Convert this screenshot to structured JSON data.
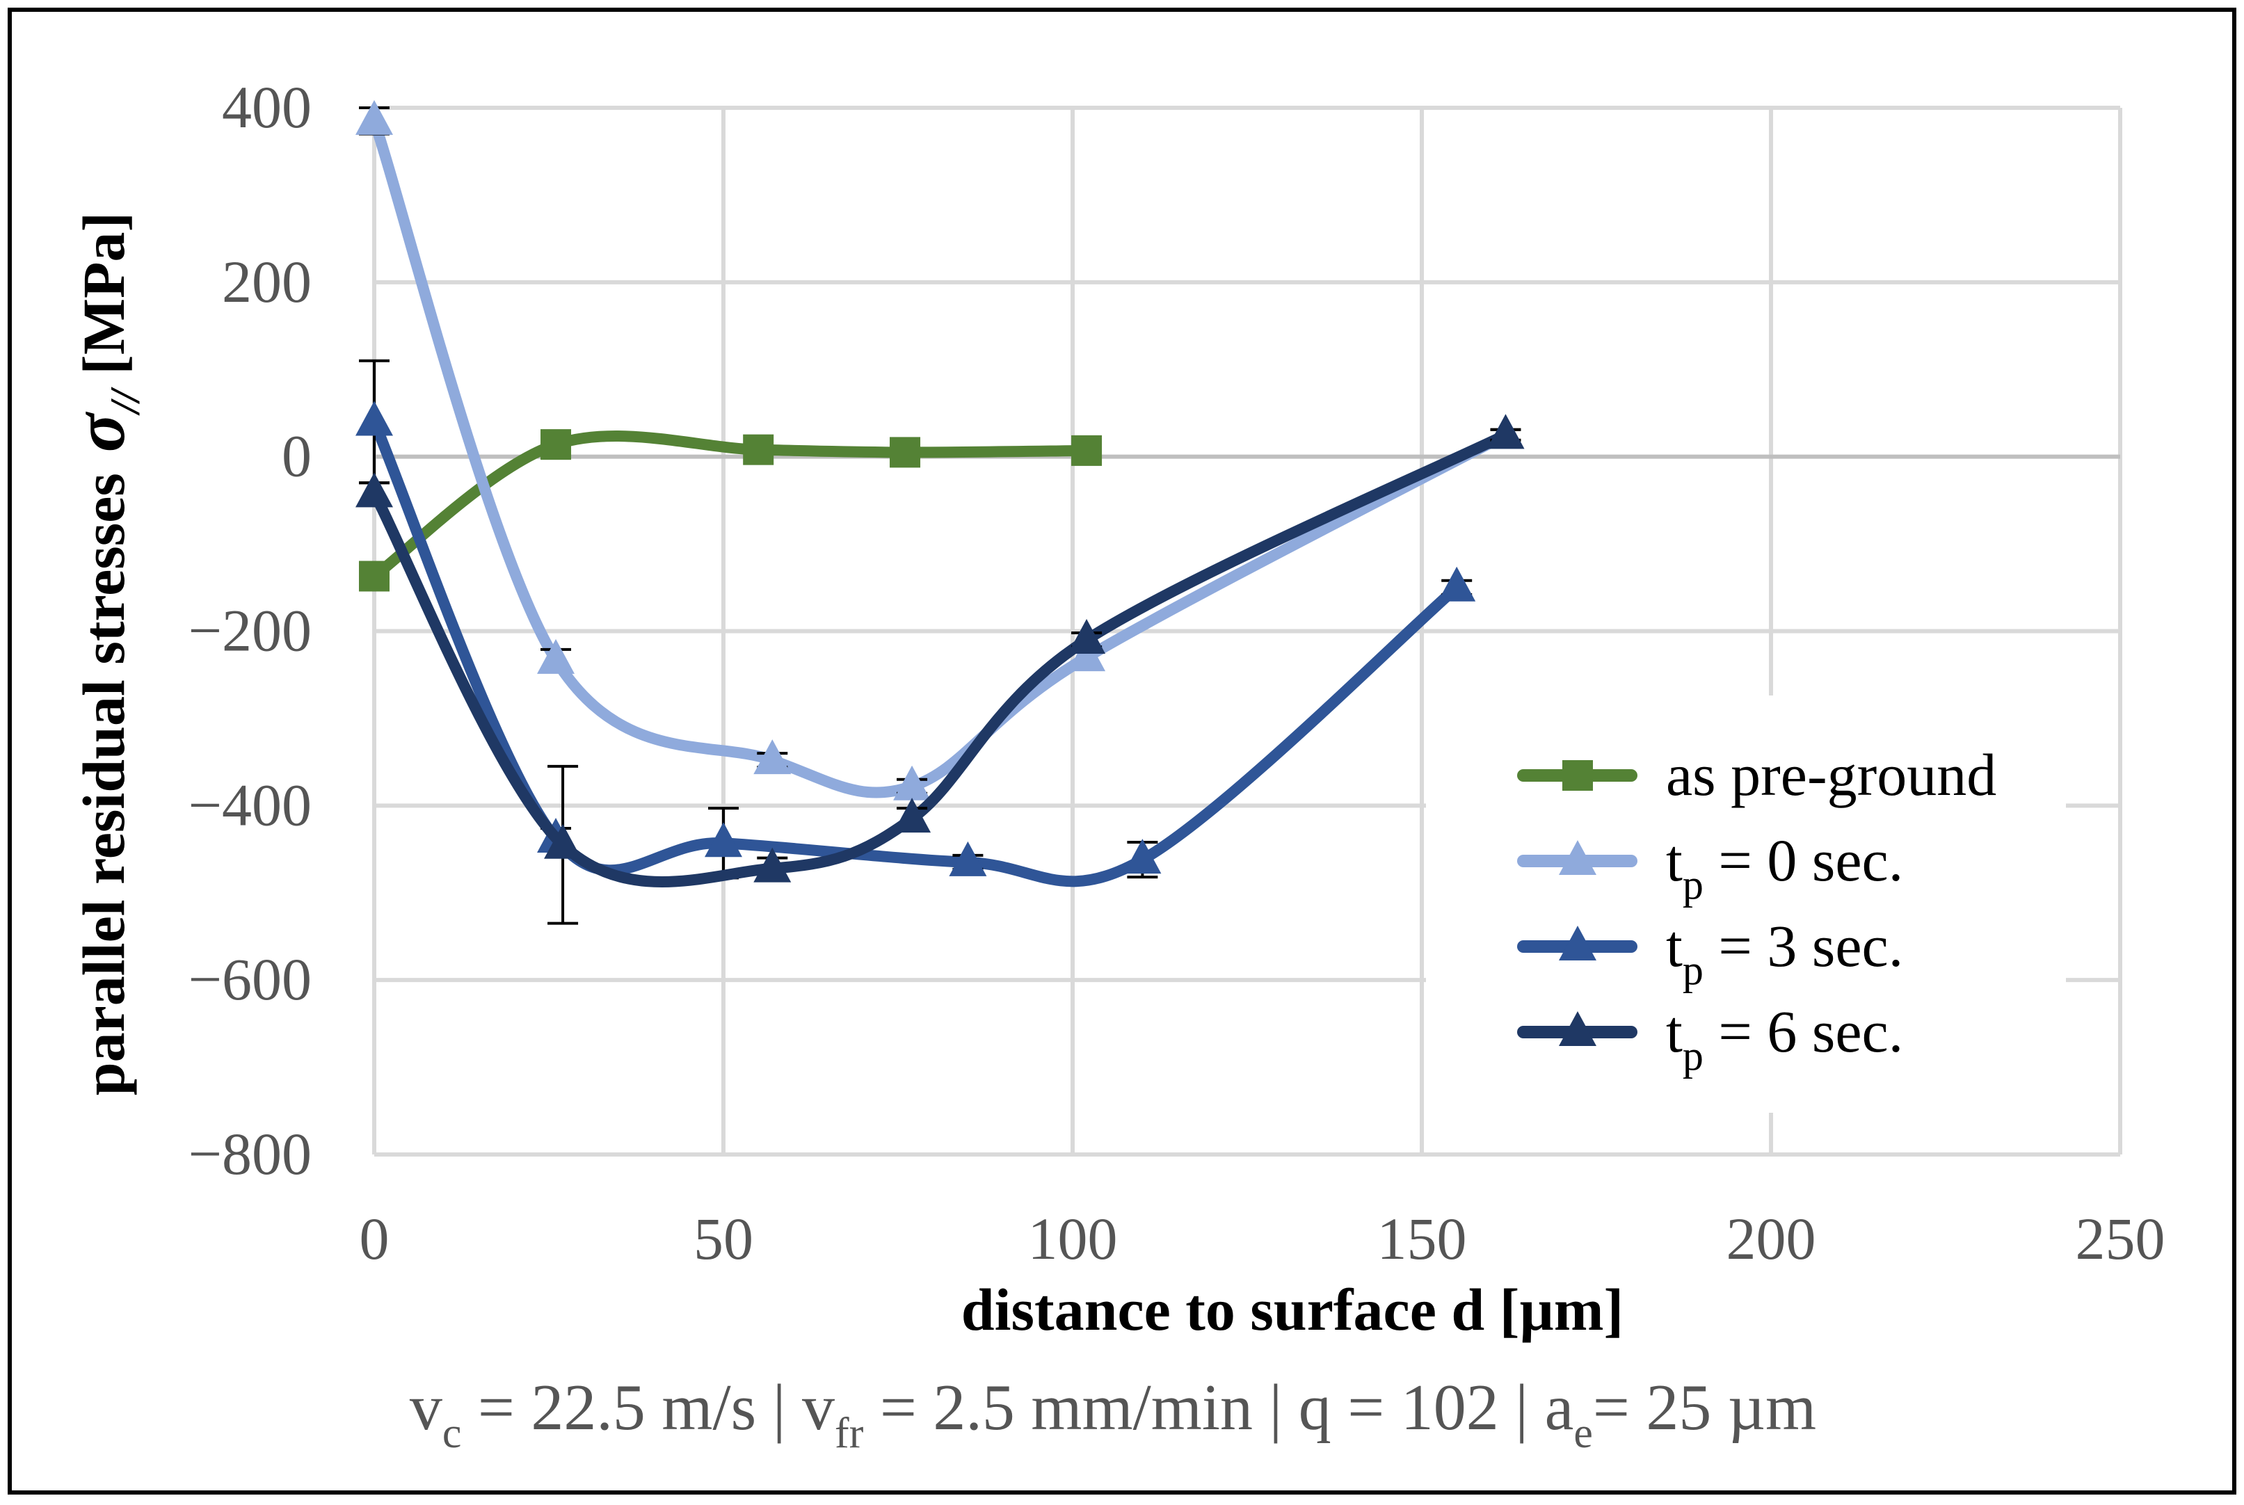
{
  "chart_data": {
    "type": "line",
    "xlabel": "distance to surface d [µm]",
    "ylabel": {
      "main": "parallel residual stresses",
      "symbol": "σ",
      "symbol_sub": "//",
      "unit": "[MPa]"
    },
    "xlim": [
      0,
      250
    ],
    "ylim": [
      -800,
      400
    ],
    "x_ticks": [
      0,
      50,
      100,
      150,
      200,
      250
    ],
    "y_ticks": [
      400,
      200,
      0,
      -200,
      -400,
      -600,
      -800
    ],
    "y_tick_labels": [
      "400",
      "200",
      "0",
      "−200",
      "−400",
      "−600",
      "−800"
    ],
    "grid": true,
    "legend_position": "right",
    "series": [
      {
        "name": "as pre-ground",
        "legend": {
          "main": "as pre-ground",
          "sub": "",
          "rest": ""
        },
        "marker": "square",
        "color": "#548235",
        "x": [
          0,
          26,
          55,
          76,
          102
        ],
        "y": [
          -137,
          14,
          8,
          5,
          7
        ],
        "err": [
          0,
          0,
          0,
          0,
          0
        ]
      },
      {
        "name": "tp = 0 sec.",
        "legend": {
          "main": "t",
          "sub": "p",
          "rest": " = 0 sec."
        },
        "marker": "triangle",
        "color": "#8faadc",
        "x": [
          0,
          26,
          57,
          77,
          102,
          162
        ],
        "y": [
          385,
          -233,
          -348,
          -378,
          -230,
          25
        ],
        "err": [
          15,
          12,
          8,
          8,
          12,
          6
        ]
      },
      {
        "name": "tp = 3 sec.",
        "legend": {
          "main": "t",
          "sub": "p",
          "rest": " = 3 sec."
        },
        "marker": "triangle",
        "color": "#2f5597",
        "x": [
          0,
          26,
          50,
          85,
          110,
          155
        ],
        "y": [
          40,
          -438,
          -443,
          -465,
          -462,
          -150
        ],
        "err": [
          70,
          12,
          40,
          8,
          20,
          8
        ]
      },
      {
        "name": "tp = 6 sec.",
        "legend": {
          "main": "t",
          "sub": "p",
          "rest": " = 6 sec."
        },
        "marker": "triangle",
        "color": "#1f3864",
        "x": [
          0,
          27,
          57,
          77,
          102,
          162
        ],
        "y": [
          -42,
          -445,
          -472,
          -415,
          -210,
          25
        ],
        "err": [
          12,
          90,
          12,
          12,
          8,
          6
        ]
      }
    ]
  },
  "caption": {
    "parts": [
      {
        "text": "v",
        "sub": false
      },
      {
        "text": "c",
        "sub": true
      },
      {
        "text": " = 22.5 m/s | v",
        "sub": false
      },
      {
        "text": "fr",
        "sub": true
      },
      {
        "text": " = 2.5 mm/min | q = 102 | a",
        "sub": false
      },
      {
        "text": "e",
        "sub": true
      },
      {
        "text": "= 25 µm",
        "sub": false
      }
    ]
  }
}
